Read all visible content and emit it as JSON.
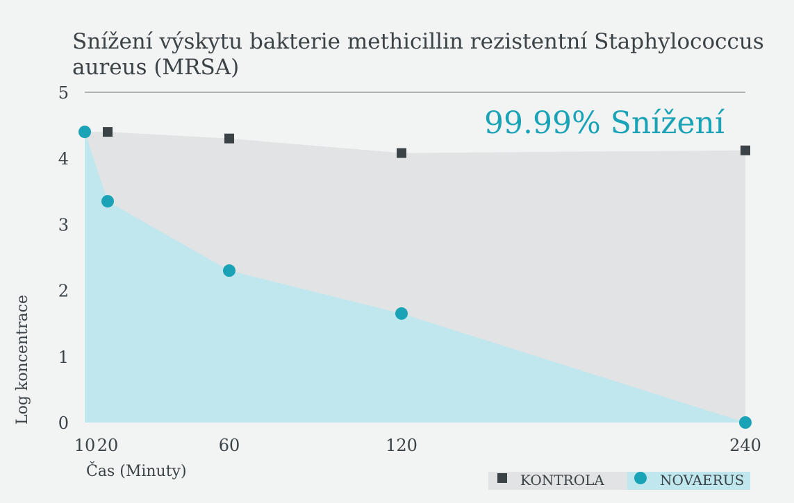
{
  "chart_data": {
    "type": "area",
    "title_line1": "Snížení výskytu bakterie methicillin rezistentní Staphylococcus",
    "title_line2": "aureus (MRSA)",
    "xlabel": "Čas (Minuty)",
    "ylabel": "Log koncentrace",
    "x_ticks": [
      10,
      20,
      60,
      120,
      240
    ],
    "y_ticks": [
      0,
      1,
      2,
      3,
      4,
      5
    ],
    "ylim": [
      0,
      5
    ],
    "annotation": "99.99% Snížení",
    "series": [
      {
        "name": "KONTROLA",
        "marker": "square",
        "color": "#3b4347",
        "fill": "#e2e3e4",
        "x": [
          10,
          20,
          60,
          120,
          240
        ],
        "y": [
          4.4,
          4.4,
          4.3,
          4.08,
          4.12
        ]
      },
      {
        "name": "NOVAERUS",
        "marker": "circle",
        "color": "#1aa3b6",
        "fill": "#bfe7ed",
        "x": [
          10,
          20,
          60,
          120,
          240
        ],
        "y": [
          4.4,
          3.35,
          2.3,
          1.65,
          0
        ]
      }
    ],
    "legend_position": "bottom-right",
    "grid": false
  }
}
